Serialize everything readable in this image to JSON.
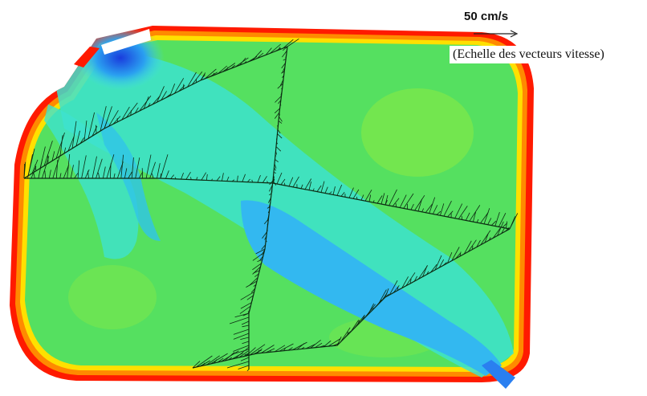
{
  "figure": {
    "scale_label": "50 cm/s",
    "scale_caption": "(Echelle des vecteurs vitesse)"
  },
  "colors": {
    "wall_outer": "#ff1a00",
    "wall_mid": "#ff8a00",
    "wall_inner": "#ffe000",
    "field_green": "#55e060",
    "field_cyan": "#33e0d8",
    "channel_blue": "#33b8f0",
    "inlet_blue": "#1040e0",
    "vector_color": "#0c2a12"
  }
}
